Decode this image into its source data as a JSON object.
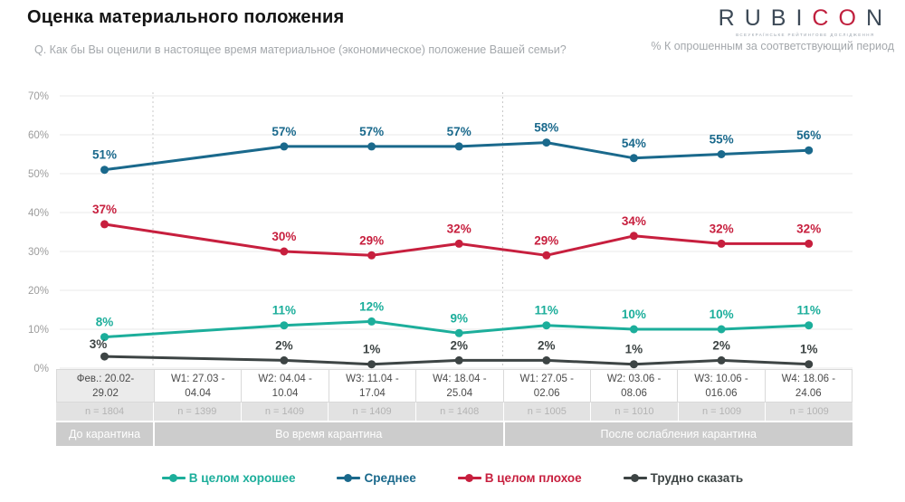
{
  "header": {
    "title": "Оценка материального положения",
    "subtitle": "Q. Как бы Вы оценили в настоящее время материальное (экономическое) положение Вашей семьи?"
  },
  "branding": {
    "logo_text": "RUBICON",
    "logo_red_letters": "CO",
    "tagline": "ВСЕУКРАЇНСЬКЕ РЕЙТИНГОВЕ ДОСЛІДЖЕННЯ",
    "note": "% К опрошенным за соответствующий период"
  },
  "chart_data": {
    "type": "line",
    "title": "Оценка материального положения",
    "ylim": [
      0,
      70
    ],
    "ytick_labels": [
      "0%",
      "10%",
      "20%",
      "30%",
      "40%",
      "50%",
      "60%",
      "70%"
    ],
    "grid": true,
    "legend_position": "bottom",
    "categories": [
      {
        "line1": "Фев.: 20.02-",
        "line2": "29.02",
        "n": "n = 1804"
      },
      {
        "line1": "W1: 27.03 -",
        "line2": "04.04",
        "n": "n = 1399"
      },
      {
        "line1": "W2: 04.04 -",
        "line2": "10.04",
        "n": "n = 1409"
      },
      {
        "line1": "W3: 11.04 -",
        "line2": "17.04",
        "n": "n = 1409"
      },
      {
        "line1": "W4: 18.04 -",
        "line2": "25.04",
        "n": "n = 1408"
      },
      {
        "line1": "W1: 27.05 -",
        "line2": "02.06",
        "n": "n = 1005"
      },
      {
        "line1": "W2: 03.06 -",
        "line2": "08.06",
        "n": "n = 1010"
      },
      {
        "line1": "W3: 10.06 -",
        "line2": "016.06",
        "n": "n = 1009"
      },
      {
        "line1": "W4: 18.06 -",
        "line2": "24.06",
        "n": "n = 1009"
      }
    ],
    "period_groups": [
      {
        "label": "До карантина",
        "start": 0,
        "span": 1
      },
      {
        "label": "Во время карантина",
        "start": 1,
        "span": 4
      },
      {
        "label": "После ослабления карантина",
        "start": 5,
        "span": 4
      }
    ],
    "separators_after_column": [
      0,
      4
    ],
    "series": [
      {
        "name": "В целом хорошее",
        "color": "#1cae9b",
        "values": [
          8,
          null,
          11,
          12,
          9,
          11,
          10,
          10,
          11
        ]
      },
      {
        "name": "Среднее",
        "color": "#1a698c",
        "values": [
          51,
          null,
          57,
          57,
          57,
          58,
          54,
          55,
          56
        ]
      },
      {
        "name": "В целом плохое",
        "color": "#c71f3e",
        "values": [
          37,
          null,
          30,
          29,
          32,
          29,
          34,
          32,
          32
        ]
      },
      {
        "name": "Трудно сказать",
        "color": "#3d4444",
        "values": [
          3,
          null,
          2,
          1,
          2,
          2,
          1,
          2,
          1
        ]
      }
    ]
  }
}
